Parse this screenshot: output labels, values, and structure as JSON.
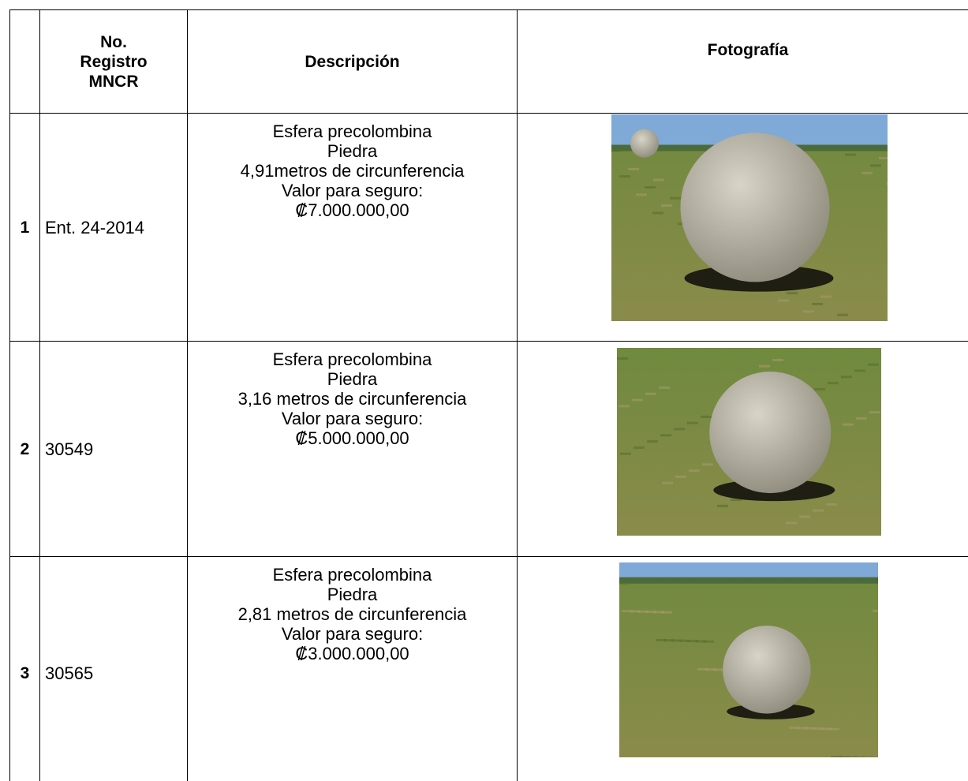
{
  "table": {
    "headers": {
      "registro": [
        "No.",
        "Registro",
        "MNCR"
      ],
      "descripcion": "Descripción",
      "fotografia": "Fotografía"
    },
    "rows": [
      {
        "number": "1",
        "registro": "Ent. 24-2014",
        "description": [
          "Esfera precolombina",
          "Piedra",
          "4,91metros de circunferencia",
          "Valor para seguro:",
          "₡7.000.000,00"
        ]
      },
      {
        "number": "2",
        "registro": "30549",
        "description": [
          "Esfera precolombina",
          "Piedra",
          "3,16 metros de circunferencia",
          "Valor para seguro:",
          "₡5.000.000,00"
        ]
      },
      {
        "number": "3",
        "registro": "30565",
        "description": [
          "Esfera precolombina",
          "Piedra",
          "2,81 metros de circunferencia",
          "Valor para seguro:",
          "₡3.000.000,00"
        ]
      }
    ]
  }
}
